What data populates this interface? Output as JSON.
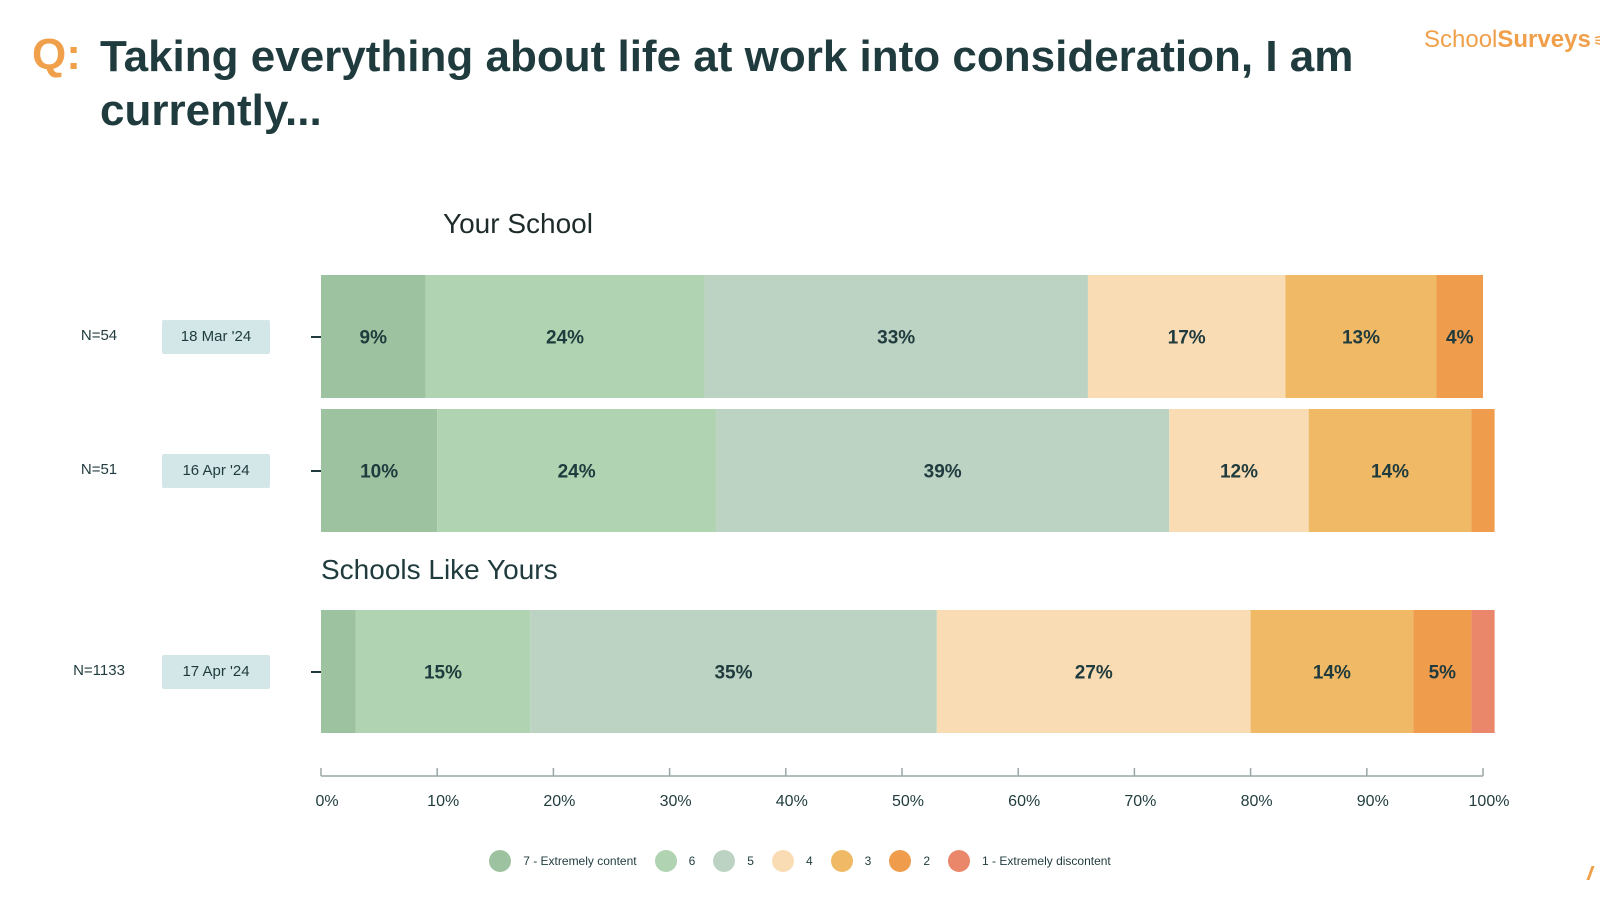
{
  "header": {
    "q_label": "Q:",
    "title": "Taking everything about life at work into consideration, I am currently...",
    "brand_part1": "School",
    "brand_part2": "Surveys"
  },
  "rows": [
    {
      "n": "N=54",
      "date": "18 Mar '24"
    },
    {
      "n": "N=51",
      "date": "16 Apr '24"
    },
    {
      "n": "N=1133",
      "date": "17 Apr '24"
    }
  ],
  "chart_data": {
    "type": "bar",
    "orientation": "horizontal",
    "stacked": true,
    "normalized": true,
    "groups": [
      {
        "title": "Your School",
        "rows": [
          0,
          1
        ]
      },
      {
        "title": "Schools Like Yours",
        "rows": [
          2
        ]
      }
    ],
    "categories": [
      "18 Mar '24",
      "16 Apr '24",
      "17 Apr '24"
    ],
    "series": [
      {
        "name": "7 - Extremely content",
        "color": "#9dc29f",
        "values": [
          9,
          10,
          3
        ],
        "labels": [
          "9%",
          "10%",
          ""
        ]
      },
      {
        "name": "6",
        "color": "#b0d3b1",
        "values": [
          24,
          24,
          15
        ],
        "labels": [
          "24%",
          "24%",
          "15%"
        ]
      },
      {
        "name": "5",
        "color": "#bcd2c2",
        "values": [
          33,
          39,
          35
        ],
        "labels": [
          "33%",
          "39%",
          "35%"
        ]
      },
      {
        "name": "4",
        "color": "#f9dcb4",
        "values": [
          17,
          12,
          27
        ],
        "labels": [
          "17%",
          "12%",
          "27%"
        ]
      },
      {
        "name": "3",
        "color": "#f0b965",
        "values": [
          13,
          14,
          14
        ],
        "labels": [
          "13%",
          "14%",
          "14%"
        ]
      },
      {
        "name": "2",
        "color": "#f09c4d",
        "values": [
          4,
          2,
          5
        ],
        "labels": [
          "4%",
          "",
          "5%"
        ]
      },
      {
        "name": "1 - Extremely discontent",
        "color": "#ea876a",
        "values": [
          0,
          0,
          2
        ],
        "labels": [
          "",
          "",
          ""
        ]
      }
    ],
    "x_ticks": [
      "0%",
      "10%",
      "20%",
      "30%",
      "40%",
      "50%",
      "60%",
      "70%",
      "80%",
      "90%",
      "100%"
    ],
    "xlim": [
      0,
      100
    ],
    "legend_position": "bottom"
  }
}
